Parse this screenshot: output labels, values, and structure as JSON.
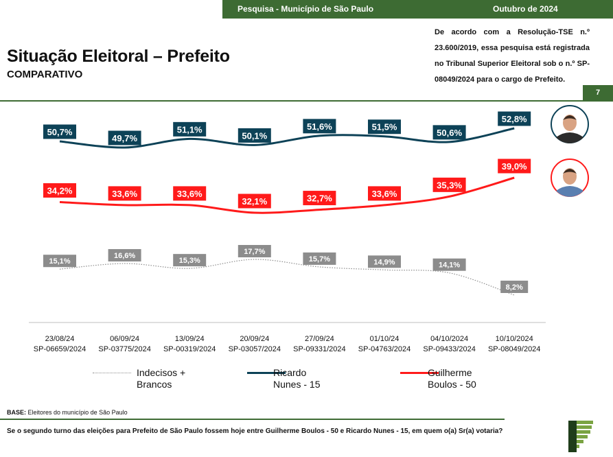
{
  "header": {
    "survey_label": "Pesquisa - Município de São Paulo",
    "date_label": "Outubro de 2024",
    "page_number": "7"
  },
  "title": "Situação Eleitoral – Prefeito",
  "subtitle": "COMPARATIVO",
  "registration_note": "De acordo com a Resolução-TSE n.º 23.600/2019, essa pesquisa está registrada no Tribunal Superior Eleitoral sob o n.º SP-08049/2024 para o cargo de Prefeito.",
  "base": {
    "label": "BASE:",
    "text": "Eleitores do município de São Paulo"
  },
  "question": "Se o segundo turno das eleições para Prefeito de São Paulo fossem hoje entre Guilherme Boulos - 50 e Ricardo Nunes - 15, em quem o(a) Sr(a) votaria?",
  "colors": {
    "brand_green": "#3d6b33",
    "nunes": "#0d4257",
    "boulos": "#ff1a1a",
    "indecisos": "#8c8c8c"
  },
  "chart_data": {
    "type": "line",
    "categories": [
      {
        "date": "23/08/24",
        "reg": "SP-06659/2024"
      },
      {
        "date": "06/09/24",
        "reg": "SP-03775/2024"
      },
      {
        "date": "13/09/24",
        "reg": "SP-00319/2024"
      },
      {
        "date": "20/09/24",
        "reg": "SP-03057/2024"
      },
      {
        "date": "27/09/24",
        "reg": "SP-09331/2024"
      },
      {
        "date": "01/10/24",
        "reg": "SP-04763/2024"
      },
      {
        "date": "04/10/2024",
        "reg": "SP-09433/2024"
      },
      {
        "date": "10/10/2024",
        "reg": "SP-08049/2024"
      }
    ],
    "series": [
      {
        "key": "nunes",
        "name": "Ricardo Nunes - 15",
        "legend_line1": "Ricardo",
        "legend_line2": "Nunes - 15",
        "color": "#0d4257",
        "style": "solid",
        "values": [
          50.7,
          49.7,
          51.1,
          50.1,
          51.6,
          51.5,
          50.6,
          52.8
        ],
        "labels": [
          "50,7%",
          "49,7%",
          "51,1%",
          "50,1%",
          "51,6%",
          "51,5%",
          "50,6%",
          "52,8%"
        ]
      },
      {
        "key": "boulos",
        "name": "Guilherme Boulos - 50",
        "legend_line1": "Guilherme",
        "legend_line2": "Boulos - 50",
        "color": "#ff1a1a",
        "style": "solid",
        "values": [
          34.2,
          33.6,
          33.6,
          32.1,
          32.7,
          33.6,
          35.3,
          39.0
        ],
        "labels": [
          "34,2%",
          "33,6%",
          "33,6%",
          "32,1%",
          "32,7%",
          "33,6%",
          "35,3%",
          "39,0%"
        ]
      },
      {
        "key": "indecisos",
        "name": "Indecisos + Brancos",
        "legend_line1": "Indecisos +",
        "legend_line2": "Brancos",
        "color": "#8c8c8c",
        "style": "dotted",
        "values": [
          15.1,
          16.6,
          15.3,
          17.7,
          15.7,
          14.9,
          14.1,
          8.2
        ],
        "labels": [
          "15,1%",
          "16,6%",
          "15,3%",
          "17,7%",
          "15,7%",
          "14,9%",
          "14,1%",
          "8,2%"
        ]
      }
    ],
    "legend_position": "bottom",
    "grid": false
  }
}
